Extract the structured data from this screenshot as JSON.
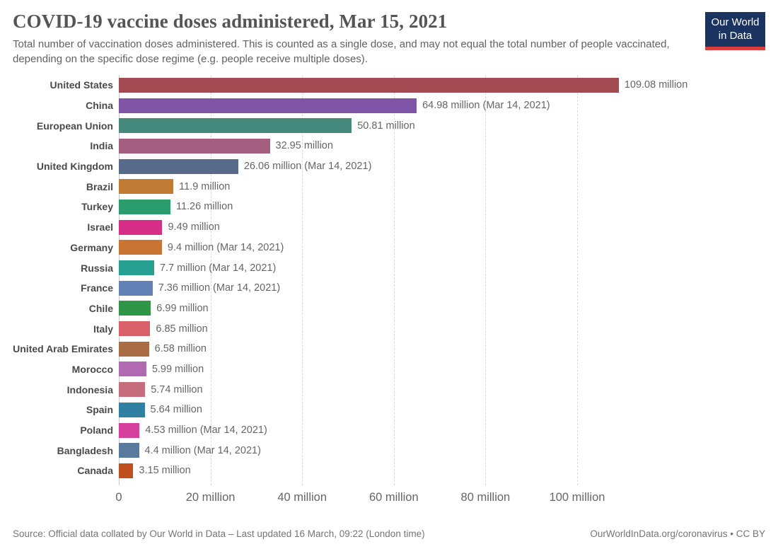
{
  "header": {
    "title": "COVID-19 vaccine doses administered, Mar 15, 2021",
    "subtitle": "Total number of vaccination doses administered. This is counted as a single dose, and may not equal the total number of people vaccinated, depending on the specific dose regime (e.g. people receive multiple doses).",
    "logo": {
      "line1": "Our World",
      "line2": "in Data",
      "bg_color": "#1a3360",
      "accent_color": "#dc3c3c"
    }
  },
  "chart_data": {
    "type": "bar",
    "orientation": "horizontal",
    "title": "COVID-19 vaccine doses administered, Mar 15, 2021",
    "xlabel": "",
    "ylabel": "",
    "xlim": [
      0,
      110
    ],
    "grid": "dashed-vertical",
    "unit": "million doses",
    "categories": [
      "United States",
      "China",
      "European Union",
      "India",
      "United Kingdom",
      "Brazil",
      "Turkey",
      "Israel",
      "Germany",
      "Russia",
      "France",
      "Chile",
      "Italy",
      "United Arab Emirates",
      "Morocco",
      "Indonesia",
      "Spain",
      "Poland",
      "Bangladesh",
      "Canada"
    ],
    "values": [
      109.08,
      64.98,
      50.81,
      32.95,
      26.06,
      11.9,
      11.26,
      9.49,
      9.4,
      7.7,
      7.36,
      6.99,
      6.85,
      6.58,
      5.99,
      5.74,
      5.64,
      4.53,
      4.4,
      3.15
    ],
    "value_labels": [
      "109.08 million",
      "64.98 million (Mar 14, 2021)",
      "50.81 million",
      "32.95 million",
      "26.06 million (Mar 14, 2021)",
      "11.9 million",
      "11.26 million",
      "9.49 million",
      "9.4 million (Mar 14, 2021)",
      "7.7 million (Mar 14, 2021)",
      "7.36 million (Mar 14, 2021)",
      "6.99 million",
      "6.85 million",
      "6.58 million",
      "5.99 million",
      "5.74 million",
      "5.64 million",
      "4.53 million (Mar 14, 2021)",
      "4.4 million (Mar 14, 2021)",
      "3.15 million"
    ],
    "colors": [
      "#a14a52",
      "#8055a8",
      "#44897c",
      "#a35e80",
      "#586a8c",
      "#c07b35",
      "#2b9c6e",
      "#d62e87",
      "#c97432",
      "#27a091",
      "#6381b5",
      "#2f9648",
      "#d95f68",
      "#a96c45",
      "#b169b1",
      "#c76e7e",
      "#2f80a2",
      "#d73f9e",
      "#5a7a9d",
      "#c0511f"
    ],
    "xticks": [
      {
        "value": 0,
        "label": "0"
      },
      {
        "value": 20,
        "label": "20 million"
      },
      {
        "value": 40,
        "label": "40 million"
      },
      {
        "value": 60,
        "label": "60 million"
      },
      {
        "value": 80,
        "label": "80 million"
      },
      {
        "value": 100,
        "label": "100 million"
      }
    ]
  },
  "footer": {
    "source": "Source: Official data collated by Our World in Data – Last updated 16 March, 09:22 (London time)",
    "license": "OurWorldInData.org/coronavirus • CC BY"
  }
}
